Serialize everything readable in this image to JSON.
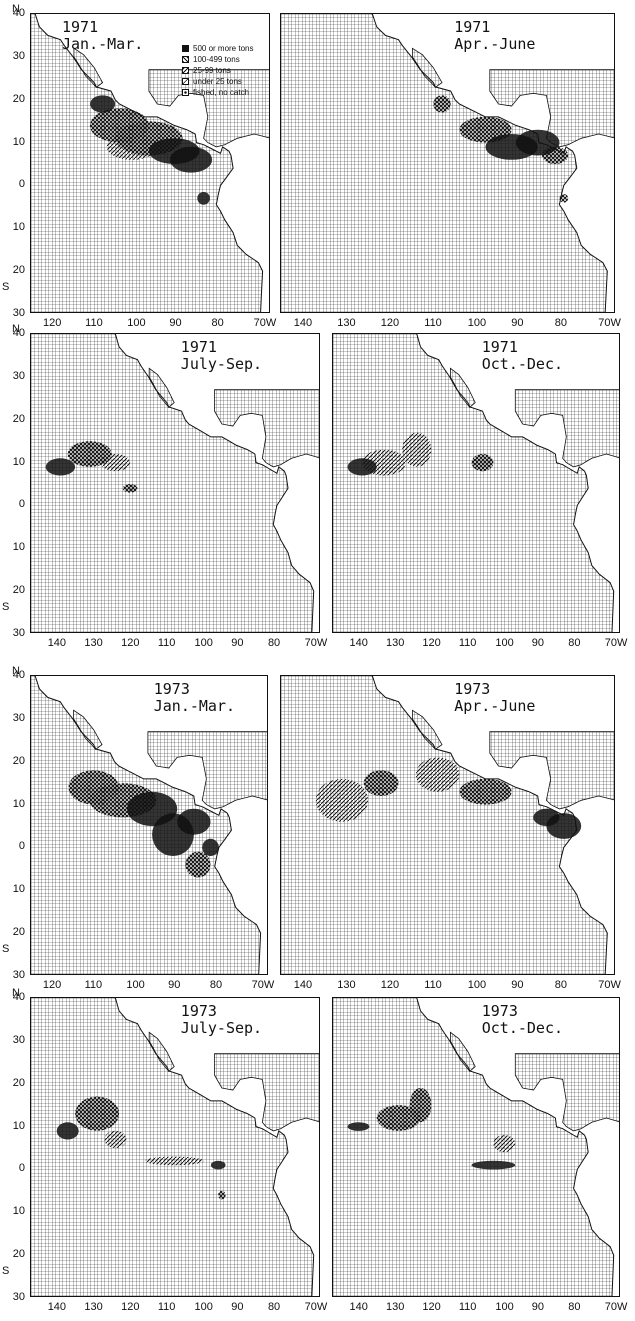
{
  "legend": {
    "items": [
      {
        "label": "500 or more tons",
        "swatch": "solid"
      },
      {
        "label": "100-499 tons",
        "swatch": "cross"
      },
      {
        "label": "25-99 tons",
        "swatch": "hatch"
      },
      {
        "label": "under 25 tons",
        "swatch": "diag"
      },
      {
        "label": "fished, no catch",
        "swatch": "dot"
      }
    ]
  },
  "y_labels": {
    "north_letter": "N",
    "south_letter": "S",
    "ticks": [
      "40",
      "30",
      "20",
      "10",
      "0",
      "10",
      "20",
      "30"
    ]
  },
  "panels": [
    {
      "id": "p1",
      "year": "1971",
      "period": "Jan.-Mar.",
      "has_legend": true,
      "x_ticks": [
        "120",
        "110",
        "100",
        "90",
        "80",
        "70W"
      ],
      "show_y": true
    },
    {
      "id": "p2",
      "year": "1971",
      "period": "Apr.-June",
      "has_legend": false,
      "x_ticks": [
        "140",
        "130",
        "120",
        "110",
        "100",
        "90",
        "80",
        "70W"
      ],
      "show_y": false
    },
    {
      "id": "p3",
      "year": "1971",
      "period": "July-Sep.",
      "has_legend": false,
      "x_ticks": [
        "140",
        "130",
        "120",
        "110",
        "100",
        "90",
        "80",
        "70W"
      ],
      "show_y": true
    },
    {
      "id": "p4",
      "year": "1971",
      "period": "Oct.-Dec.",
      "has_legend": false,
      "x_ticks": [
        "140",
        "130",
        "120",
        "110",
        "100",
        "90",
        "80",
        "70W"
      ],
      "show_y": false
    },
    {
      "id": "p5",
      "year": "1973",
      "period": "Jan.-Mar.",
      "has_legend": false,
      "x_ticks": [
        "120",
        "110",
        "100",
        "90",
        "80",
        "70W"
      ],
      "show_y": true
    },
    {
      "id": "p6",
      "year": "1973",
      "period": "Apr.-June",
      "has_legend": false,
      "x_ticks": [
        "140",
        "130",
        "120",
        "110",
        "100",
        "90",
        "80",
        "70W"
      ],
      "show_y": false
    },
    {
      "id": "p7",
      "year": "1973",
      "period": "July-Sep.",
      "has_legend": false,
      "x_ticks": [
        "140",
        "130",
        "120",
        "110",
        "100",
        "90",
        "80",
        "70W"
      ],
      "show_y": true
    },
    {
      "id": "p8",
      "year": "1973",
      "period": "Oct.-Dec.",
      "has_legend": false,
      "x_ticks": [
        "140",
        "130",
        "120",
        "110",
        "100",
        "90",
        "80",
        "70W"
      ],
      "show_y": false
    }
  ],
  "colors": {
    "ink": "#111111",
    "land": "#ffffff",
    "grid": "#333333"
  }
}
